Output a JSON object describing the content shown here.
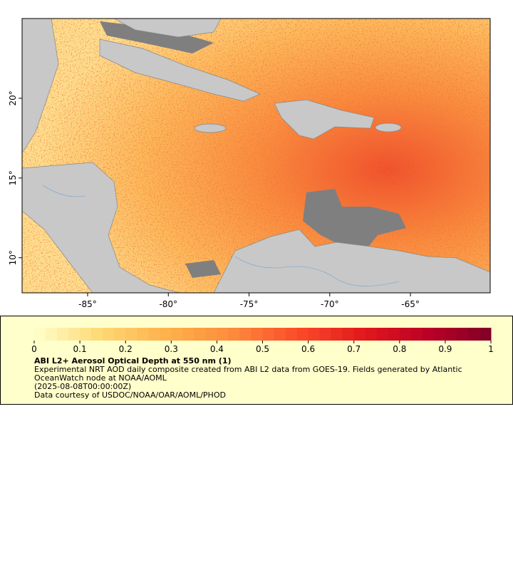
{
  "map": {
    "xlim": [
      -89.06,
      -60.06
    ],
    "ylim": [
      7.8,
      25
    ],
    "xticks": [
      {
        "value": -85,
        "label": "-85°"
      },
      {
        "value": -80,
        "label": "-80°"
      },
      {
        "value": -75,
        "label": "-75°"
      },
      {
        "value": -70,
        "label": "-70°"
      },
      {
        "value": -65,
        "label": "-65°"
      }
    ],
    "yticks": [
      {
        "value": 10,
        "label": "10°"
      },
      {
        "value": 15,
        "label": "15°"
      },
      {
        "value": 20,
        "label": "20°"
      }
    ]
  },
  "colorbar": {
    "range": [
      0,
      1
    ],
    "ticks": [
      0,
      0.1,
      0.2,
      0.3,
      0.4,
      0.5,
      0.6,
      0.7,
      0.8,
      0.9,
      1
    ],
    "colors": [
      "#ffffcc",
      "#fed976",
      "#feb24c",
      "#fd8d3c",
      "#fc4e2a",
      "#e31a1c",
      "#bd0026",
      "#800026"
    ],
    "steps": 40
  },
  "legend": {
    "title": "ABI L2+ Aerosol Optical Depth at 550 nm (1)",
    "description": "Experimental NRT AOD daily composite created from ABI L2 data from GOES-19. Fields generated by Atlantic OceanWatch node at NOAA/AOML",
    "time": "(2025-08-08T00:00:00Z)",
    "credit": "Data courtesy of USDOC/NOAA/OAR/AOML/PHOD"
  }
}
